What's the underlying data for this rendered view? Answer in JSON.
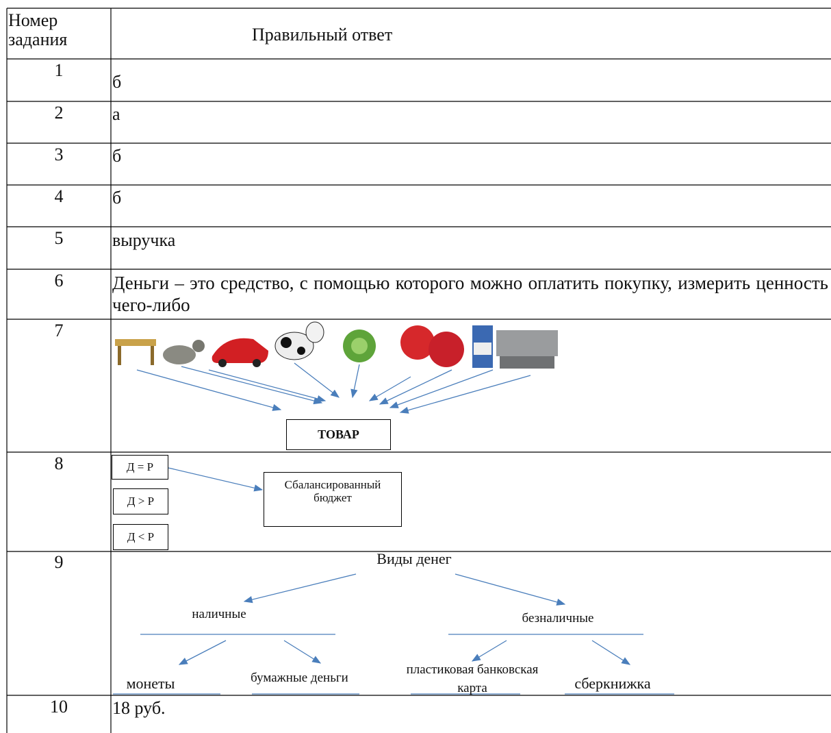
{
  "table": {
    "header": {
      "number": "Номер задания",
      "answer": "Правильный ответ"
    },
    "rows": [
      {
        "number": "1",
        "answer": "б"
      },
      {
        "number": "2",
        "answer": "а"
      },
      {
        "number": "3",
        "answer": "б"
      },
      {
        "number": "4",
        "answer": "б"
      },
      {
        "number": "5",
        "answer": "выручка"
      },
      {
        "number": "6",
        "answer": "Деньги – это средство, с помощью которого можно оплатить покупку, измерить ценность чего-либо"
      },
      {
        "number": "7",
        "diagram": {
          "center": "ТОВАР"
        }
      },
      {
        "number": "8",
        "diagram": {
          "options": [
            "Д = Р",
            "Д > Р",
            "Д < Р"
          ],
          "target": "Сбалансированный бюджет"
        }
      },
      {
        "number": "9",
        "diagram": {
          "root": "Виды денег",
          "branches": [
            {
              "label": "наличные",
              "children": [
                "монеты",
                "бумажные деньги"
              ]
            },
            {
              "label": "безналичные",
              "children": [
                "пластиковая банковская карта",
                "сберкнижка"
              ]
            }
          ]
        }
      },
      {
        "number": "10",
        "answer": "18 руб."
      }
    ]
  }
}
